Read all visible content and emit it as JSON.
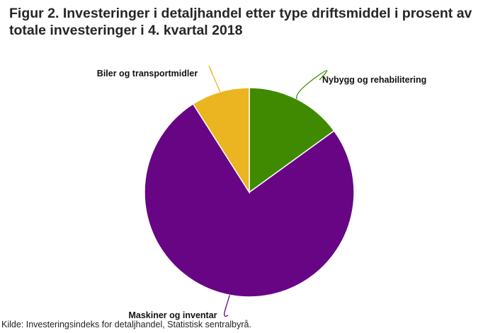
{
  "chart_data": {
    "type": "pie",
    "title": "Figur 2. Investeringer i detaljhandel etter type driftsmiddel i prosent av totale investeringer i 4. kvartal 2018",
    "categories": [
      "Nybygg og rehabilitering",
      "Maskiner og inventar",
      "Biler og transportmidler"
    ],
    "values": [
      15,
      76,
      9
    ],
    "colors": [
      "#3f8a00",
      "#680585",
      "#ebb421"
    ],
    "leader_colors": [
      "#3f8a00",
      "#680585",
      "#ebb421"
    ],
    "start_angle_deg": 0,
    "direction": "clockwise",
    "legend": "none"
  },
  "source": "Kilde: Investeringsindeks for detaljhandel, Statistisk sentralbyrå."
}
